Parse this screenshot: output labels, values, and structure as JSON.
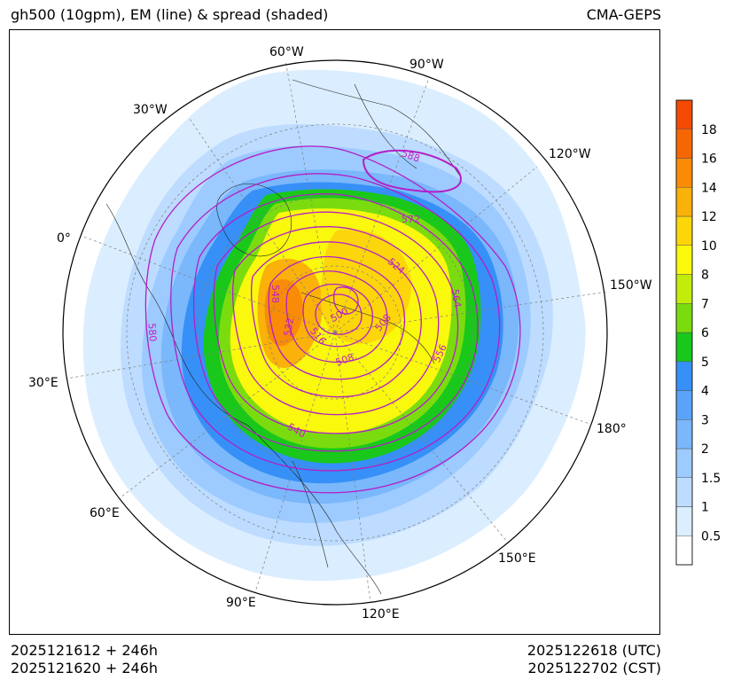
{
  "header": {
    "title_left": "gh500 (10gpm), EM (line) & spread (shaded)",
    "title_right": "CMA-GEPS"
  },
  "footer": {
    "init_utc": "2025121612 + 246h",
    "init_cst": "2025121620 + 246h",
    "valid_utc": "2025122618 (UTC)",
    "valid_cst": "2025122702 (CST)"
  },
  "map": {
    "projection": "north-polar-stereographic",
    "longitude_labels": [
      "60°W",
      "90°W",
      "30°W",
      "120°W",
      "0°",
      "150°W",
      "30°E",
      "180°",
      "60°E",
      "150°E",
      "90°E",
      "120°E"
    ],
    "land_outline_color": "#000000",
    "gridline_color": "#808080"
  },
  "chart_data": {
    "type": "heatmap",
    "title": "gh500 (10gpm), EM (line) & spread (shaded)",
    "variable_shaded": "500 hPa geopotential height ensemble spread (10gpm)",
    "variable_lines": "500 hPa geopotential height ensemble mean (10gpm)",
    "colorbar": {
      "levels": [
        0.5,
        1,
        1.5,
        2,
        3,
        4,
        5,
        6,
        7,
        8,
        10,
        12,
        14,
        16,
        18
      ],
      "tick_labels": [
        "0.5",
        "1",
        "1.5",
        "2",
        "3",
        "4",
        "5",
        "6",
        "7",
        "8",
        "10",
        "12",
        "14",
        "16",
        "18"
      ],
      "colors": [
        "#ffffff",
        "#dbeeff",
        "#bddcff",
        "#9dcbff",
        "#7ab7fb",
        "#5aa3f8",
        "#3690f7",
        "#19c81a",
        "#7adc0f",
        "#c3ec0c",
        "#faf80c",
        "#fcd60b",
        "#fab109",
        "#f98b07",
        "#f76605",
        "#f54a04"
      ]
    },
    "contour_labels": [
      "588",
      "572",
      "524",
      "564",
      "548",
      "500",
      "508",
      "532",
      "516",
      "508",
      "556",
      "580",
      "540"
    ],
    "contour_color": "#b41ec8"
  }
}
